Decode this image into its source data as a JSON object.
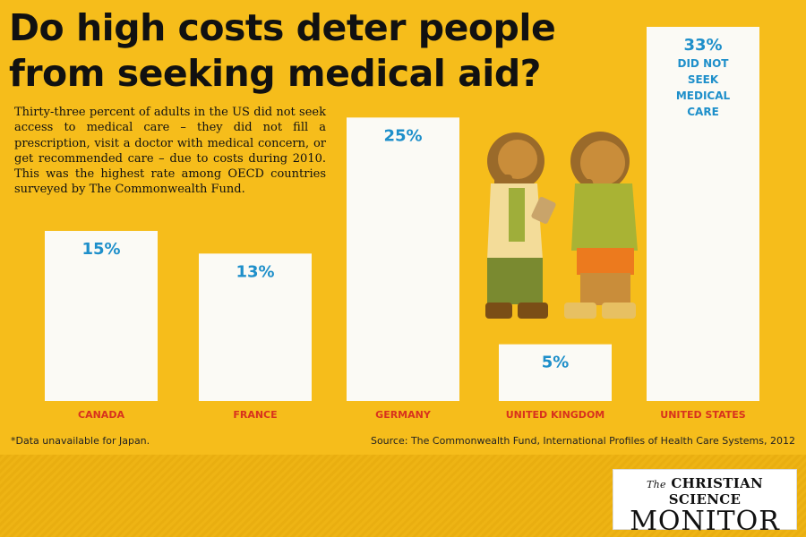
{
  "title": "Do high costs deter people from seeking medical aid?",
  "intro": "Thirty-three percent of adults in the US did not seek access to medical care – they did not fill a prescription, visit a doctor with medical concern, or get recommended care – due to costs during 2010. This was the highest rate among OECD countries surveyed by The Commonwealth Fund.",
  "footnote": "*Data unavailable for Japan.",
  "source": "Source: The Commonwealth Fund, International Profiles of Health Care Systems, 2012",
  "logo": {
    "the": "The",
    "line1": "CHRISTIAN SCIENCE",
    "line2": "MONITOR"
  },
  "colors": {
    "background": "#f6bd1b",
    "bar": "#fbfaf5",
    "value_label": "#1e8fca",
    "category_label": "#d8321e"
  },
  "chart_data": {
    "type": "bar",
    "categories": [
      "CANADA",
      "FRANCE",
      "GERMANY",
      "UNITED KINGDOM",
      "UNITED STATES"
    ],
    "values": [
      15,
      13,
      25,
      5,
      33
    ],
    "value_labels": [
      "15%",
      "13%",
      "25%",
      "5%",
      "33%"
    ],
    "annotation": "DID NOT SEEK MEDICAL CARE",
    "ylim": [
      0,
      35
    ],
    "grid": false
  }
}
